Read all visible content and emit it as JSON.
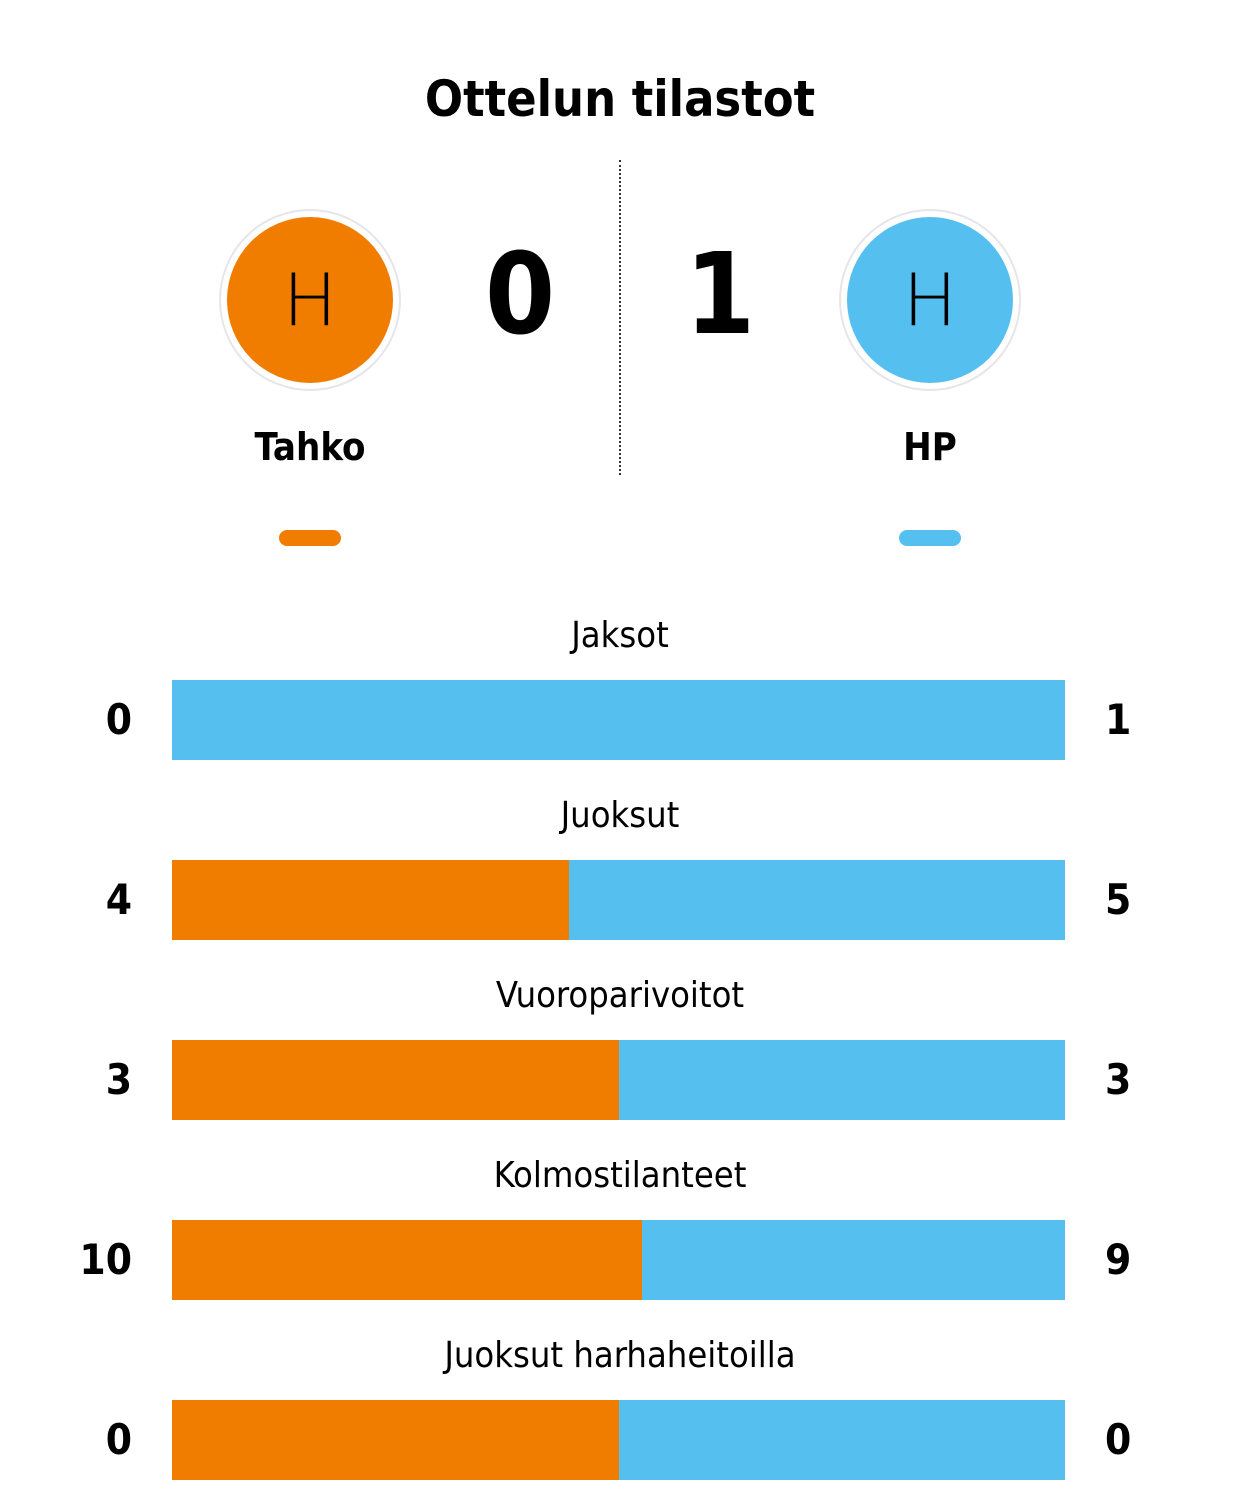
{
  "title": "Ottelun tilastot",
  "colors": {
    "home": "#F07D00",
    "away": "#55C0EF"
  },
  "home": {
    "name": "Tahko",
    "logo_letter": "H",
    "score": "0"
  },
  "away": {
    "name": "HP",
    "logo_letter": "H",
    "score": "1"
  },
  "chart_data": {
    "type": "bar",
    "orientation": "horizontal-stacked-share",
    "categories": [
      "Jaksot",
      "Juoksut",
      "Vuoroparivoitot",
      "Kolmostilanteet",
      "Juoksut harhaheitoilla"
    ],
    "series": [
      {
        "name": "Tahko",
        "values": [
          0,
          4,
          3,
          10,
          0
        ]
      },
      {
        "name": "HP",
        "values": [
          1,
          5,
          3,
          9,
          0
        ]
      }
    ]
  }
}
